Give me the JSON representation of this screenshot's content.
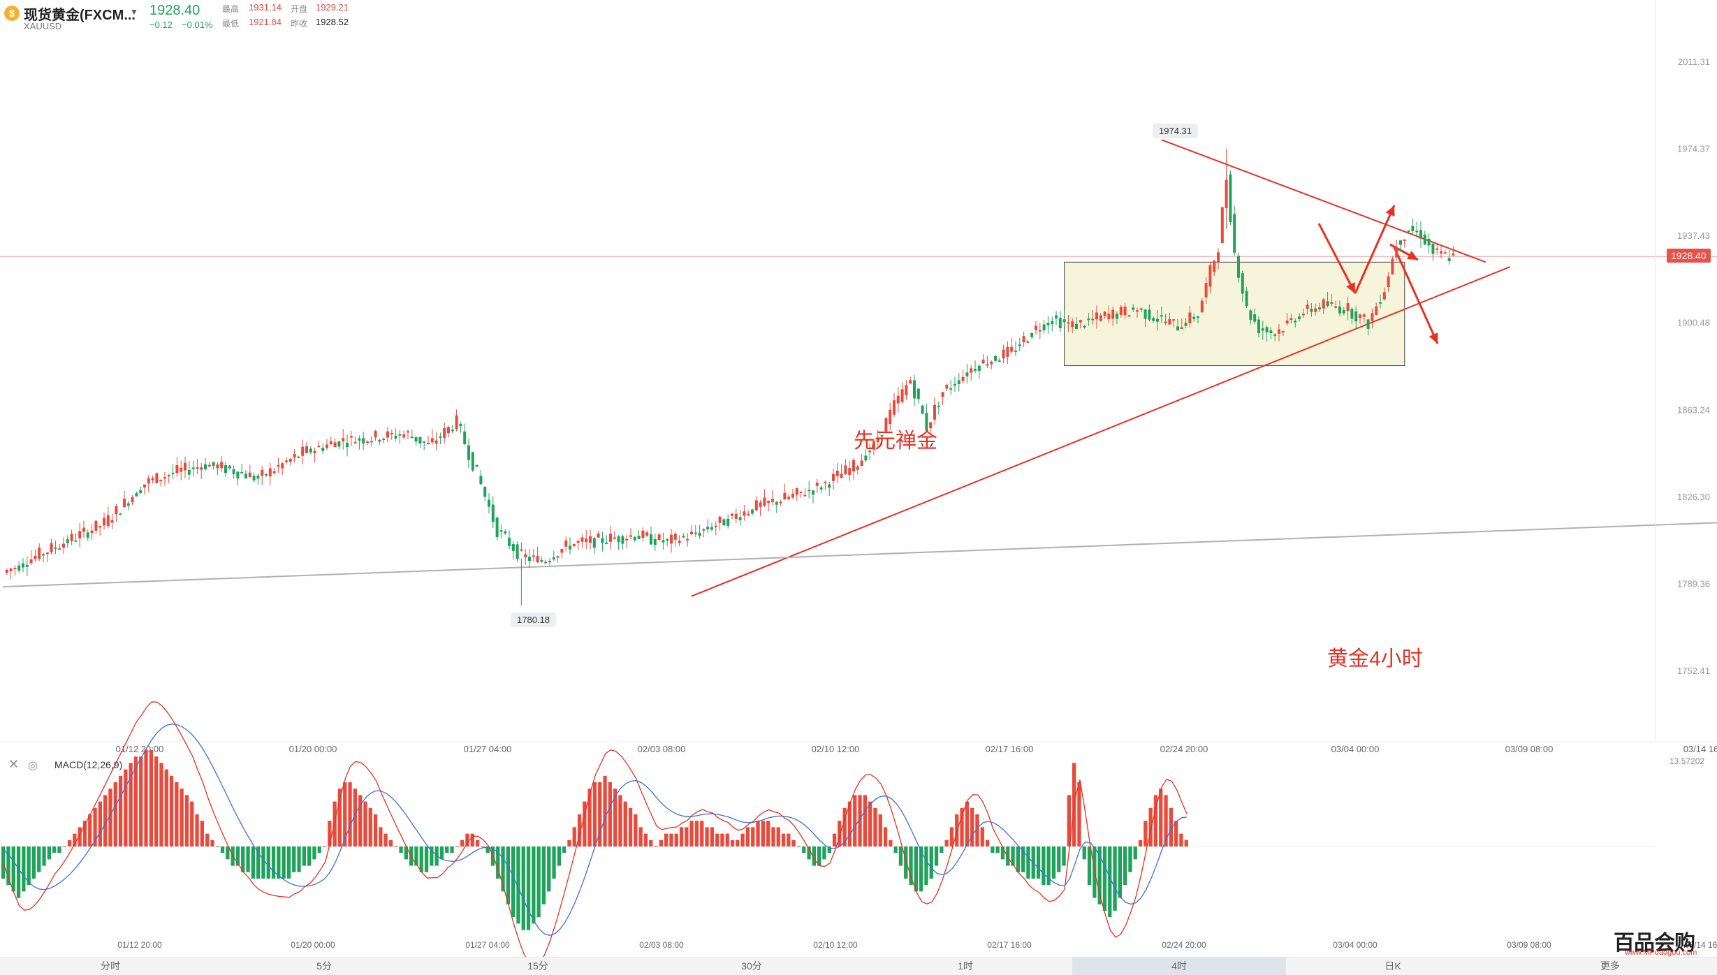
{
  "header": {
    "title": "现货黄金(FXCM...",
    "symbol": "XAUUSD",
    "price": "1928.40",
    "change": "−0.12",
    "change_pct": "−0.01%",
    "stats": {
      "high_label": "最高",
      "high": "1931.14",
      "open_label": "开盘",
      "open": "1929.21",
      "low_label": "最低",
      "low": "1921.84",
      "prev_label": "昨收",
      "prev": "1928.52"
    }
  },
  "annotations": {
    "zen": "先元禅金",
    "tf": "黄金4小时",
    "high_tip": "1974.31",
    "low_tip": "1780.18",
    "last_price": "1928.40"
  },
  "macd": {
    "label": "MACD(12,26,9)",
    "top_value": "13.57202"
  },
  "timeframes": [
    "分时",
    "5分",
    "15分",
    "30分",
    "1时",
    "4时",
    "日K"
  ],
  "active_timeframe": "4时",
  "more_label": "更多",
  "watermark": {
    "text": "百品会购",
    "sub": "www.MPdaogou.com"
  },
  "colors": {
    "up": "#e84a3c",
    "down": "#1fa35a",
    "trend": "#e8301f",
    "box": "#f7f4dc"
  },
  "chart_data": {
    "type": "candlestick",
    "timeframe": "4h",
    "ylim": [
      1752.41,
      2011.31
    ],
    "y_ticks": [
      2011.31,
      1974.37,
      1937.43,
      1900.48,
      1863.24,
      1826.3,
      1789.36,
      1752.41
    ],
    "x_ticks": [
      "01/12 20:00",
      "01/20 00:00",
      "01/27 04:00",
      "02/03 08:00",
      "02/10 12:00",
      "02/17 16:00",
      "02/24 20:00",
      "03/04 00:00",
      "03/09 08:00",
      "03/14 16"
    ],
    "close_path": [
      [
        0,
        1794
      ],
      [
        14,
        1806
      ],
      [
        25,
        1815
      ],
      [
        35,
        1832
      ],
      [
        41,
        1836
      ],
      [
        50,
        1840
      ],
      [
        56,
        1838
      ],
      [
        63,
        1834
      ],
      [
        74,
        1845
      ],
      [
        83,
        1850
      ],
      [
        94,
        1852
      ],
      [
        100,
        1853
      ],
      [
        105,
        1848
      ],
      [
        112,
        1858
      ],
      [
        117,
        1836
      ],
      [
        122,
        1812
      ],
      [
        128,
        1801
      ],
      [
        133,
        1799
      ],
      [
        140,
        1806
      ],
      [
        148,
        1808
      ],
      [
        156,
        1810
      ],
      [
        164,
        1807
      ],
      [
        170,
        1810
      ],
      [
        178,
        1816
      ],
      [
        186,
        1822
      ],
      [
        194,
        1826
      ],
      [
        202,
        1831
      ],
      [
        210,
        1839
      ],
      [
        215,
        1848
      ],
      [
        220,
        1865
      ],
      [
        224,
        1876
      ],
      [
        228,
        1856
      ],
      [
        232,
        1871
      ],
      [
        240,
        1882
      ],
      [
        249,
        1888
      ],
      [
        255,
        1898
      ],
      [
        259,
        1902
      ],
      [
        264,
        1899
      ],
      [
        272,
        1903
      ],
      [
        280,
        1906
      ],
      [
        285,
        1902
      ],
      [
        290,
        1899
      ],
      [
        295,
        1904
      ],
      [
        298,
        1922
      ],
      [
        300,
        1933
      ],
      [
        302,
        1962
      ],
      [
        304,
        1930
      ],
      [
        307,
        1906
      ],
      [
        310,
        1898
      ],
      [
        314,
        1896
      ],
      [
        320,
        1904
      ],
      [
        326,
        1908
      ],
      [
        332,
        1906
      ],
      [
        337,
        1900
      ],
      [
        341,
        1915
      ],
      [
        344,
        1934
      ],
      [
        347,
        1940
      ],
      [
        350,
        1938
      ],
      [
        353,
        1930
      ],
      [
        358,
        1928
      ]
    ],
    "high_marker": 1974.31,
    "low_marker": 1780.18,
    "last_price": 1928.4,
    "consolidation_box": {
      "x_from": 262,
      "x_to": 346,
      "y_from": 1882,
      "y_to": 1926
    },
    "trendlines": [
      {
        "name": "support",
        "from": [
          170,
          1784
        ],
        "to": [
          372,
          1924
        ]
      },
      {
        "name": "resistance",
        "from": [
          286,
          1978
        ],
        "to": [
          366,
          1926
        ]
      },
      {
        "name": "long-term",
        "from": [
          0,
          1788
        ],
        "to": [
          435,
          1816
        ]
      }
    ],
    "macd": {
      "label": "MACD(12,26,9)",
      "hist": [
        -5,
        -6,
        -7,
        -8,
        -7,
        -6,
        -5,
        -4,
        -3,
        -2,
        -1,
        -1,
        0,
        1,
        2,
        3,
        4,
        5,
        6,
        7,
        8,
        9,
        10,
        11,
        12,
        13,
        14,
        14,
        15,
        15,
        14,
        13,
        12,
        11,
        10,
        9,
        8,
        7,
        5,
        4,
        2,
        1,
        0,
        -1,
        -2,
        -3,
        -3,
        -4,
        -4,
        -5,
        -5,
        -5,
        -5,
        -5,
        -5,
        -5,
        -5,
        -4,
        -4,
        -3,
        -3,
        -2,
        -1,
        0,
        4,
        7,
        9,
        10,
        10,
        9,
        8,
        7,
        6,
        5,
        3,
        2,
        1,
        0,
        -1,
        -2,
        -3,
        -3,
        -4,
        -4,
        -3,
        -3,
        -2,
        -1,
        -1,
        0,
        1,
        2,
        2,
        1,
        0,
        -1,
        -3,
        -5,
        -7,
        -9,
        -11,
        -12,
        -13,
        -13,
        -12,
        -11,
        -9,
        -7,
        -5,
        -3,
        -1,
        1,
        3,
        5,
        7,
        9,
        10,
        10,
        11,
        10,
        9,
        8,
        7,
        6,
        5,
        3,
        2,
        1,
        0,
        1,
        2,
        2,
        2,
        3,
        3,
        4,
        4,
        4,
        3,
        3,
        2,
        2,
        2,
        1,
        1,
        2,
        3,
        3,
        4,
        4,
        4,
        3,
        3,
        2,
        2,
        1,
        0,
        -1,
        -2,
        -3,
        -3,
        -2,
        -1,
        2,
        4,
        6,
        7,
        8,
        8,
        8,
        7,
        6,
        5,
        3,
        1,
        -1,
        -3,
        -5,
        -6,
        -7,
        -7,
        -6,
        -5,
        -3,
        -1,
        1,
        3,
        5,
        6,
        7,
        6,
        5,
        3,
        1,
        -1,
        -1,
        -2,
        -3,
        -3,
        -4,
        -4,
        -5,
        -5,
        -5,
        -6,
        -6,
        -5,
        -4,
        -3,
        8,
        13,
        10,
        -2,
        -6,
        -8,
        -9,
        -10,
        -11,
        -10,
        -8,
        -6,
        -4,
        -2,
        1,
        4,
        6,
        8,
        9,
        8,
        6,
        4,
        2,
        1
      ]
    }
  }
}
